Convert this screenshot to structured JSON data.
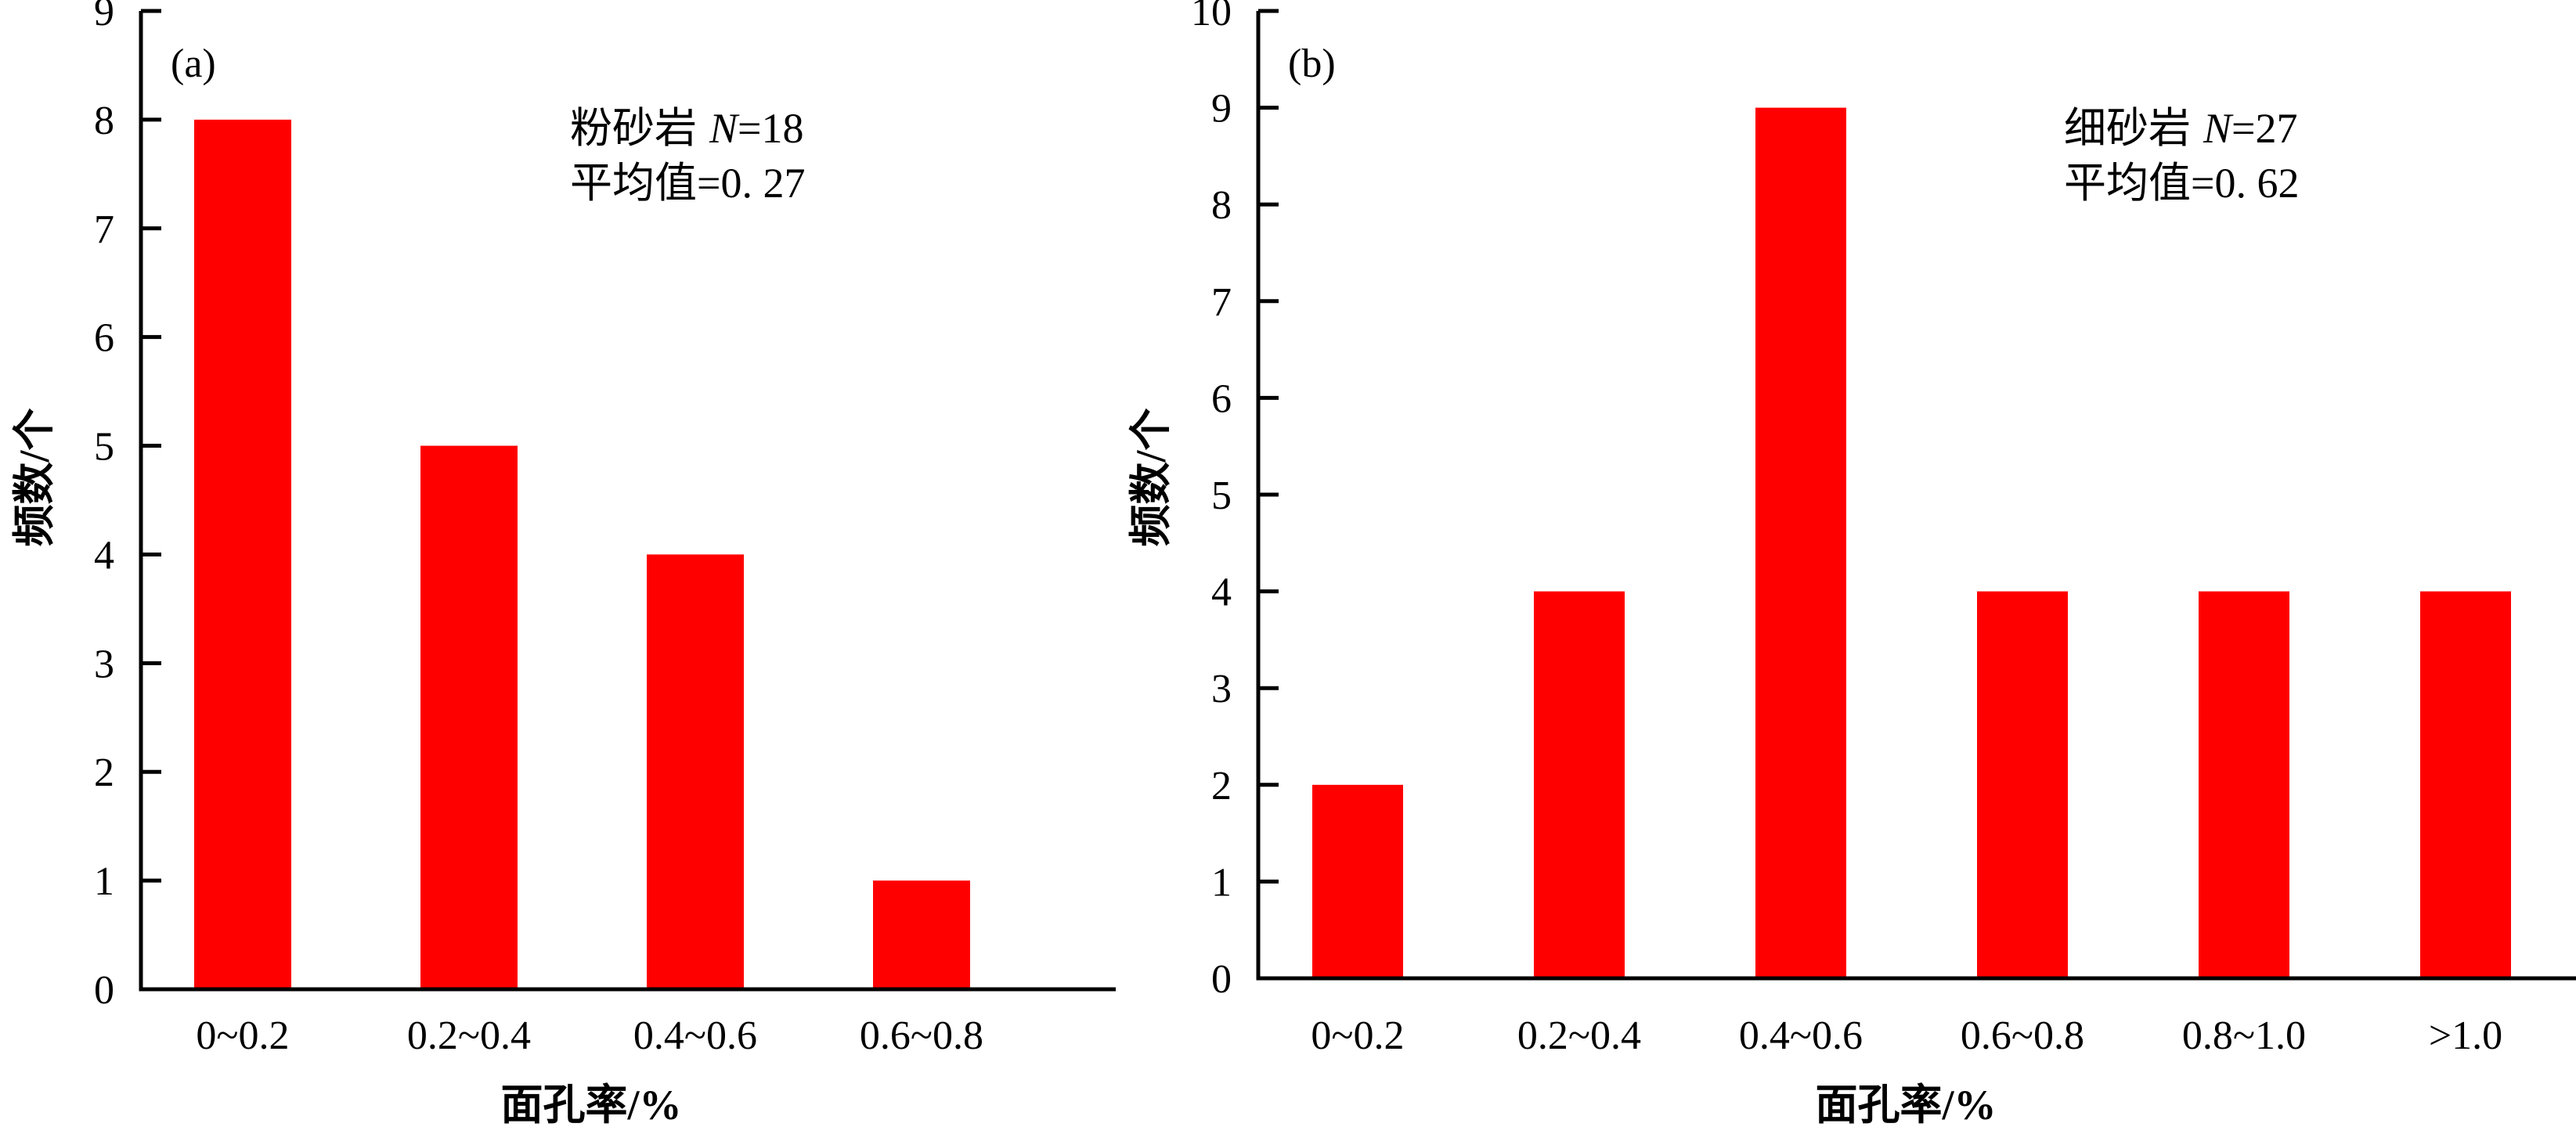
{
  "chart_data": [
    {
      "type": "bar",
      "panel_label": "(a)",
      "categories": [
        "0~0.2",
        "0.2~0.4",
        "0.4~0.6",
        "0.6~0.8"
      ],
      "values": [
        8,
        5,
        4,
        1
      ],
      "xlabel": "面孔率/%",
      "ylabel": "频数/个",
      "ylim": [
        0,
        9
      ],
      "yticks": [
        "0",
        "1",
        "2",
        "3",
        "4",
        "5",
        "6",
        "7",
        "8",
        "9"
      ],
      "annotation": {
        "rock": "粉砂岩",
        "n_symbol": "N",
        "n_value": "=18",
        "mean": "平均值=0. 27"
      },
      "bar_color": "#ff0000",
      "grid": false
    },
    {
      "type": "bar",
      "panel_label": "(b)",
      "categories": [
        "0~0.2",
        "0.2~0.4",
        "0.4~0.6",
        "0.6~0.8",
        "0.8~1.0",
        ">1.0"
      ],
      "values": [
        2,
        4,
        9,
        4,
        4,
        4
      ],
      "xlabel": "面孔率/%",
      "ylabel": "频数/个",
      "ylim": [
        0,
        10
      ],
      "yticks": [
        "0",
        "1",
        "2",
        "3",
        "4",
        "5",
        "6",
        "7",
        "8",
        "9",
        "10"
      ],
      "annotation": {
        "rock": "细砂岩",
        "n_symbol": "N",
        "n_value": "=27",
        "mean": "平均值=0. 62"
      },
      "bar_color": "#ff0000",
      "grid": false
    }
  ]
}
